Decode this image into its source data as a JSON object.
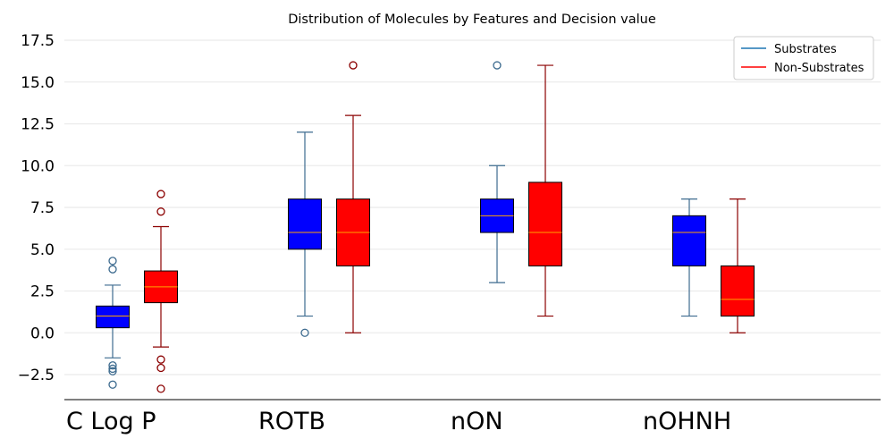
{
  "chart_data": {
    "type": "boxplot",
    "title": "Distribution of Molecules by Features and Decision value",
    "xlabel": "",
    "ylabel": "",
    "ylim": [
      -4.0,
      18.0
    ],
    "yticks": [
      -2.5,
      0.0,
      2.5,
      5.0,
      7.5,
      10.0,
      12.5,
      15.0,
      17.5
    ],
    "ytick_labels": [
      "−2.5",
      "0.0",
      "2.5",
      "5.0",
      "7.5",
      "10.0",
      "12.5",
      "15.0",
      "17.5"
    ],
    "grid": "horizontal",
    "legend_position": "top-right",
    "categories": [
      "C Log P",
      "ROTB",
      "nON",
      "nOHNH"
    ],
    "series": [
      {
        "name": "Substrates",
        "fill": "#0000ff",
        "line": "#3d6b8f",
        "boxes": [
          {
            "whislo": -1.5,
            "q1": 0.3,
            "med": 1.0,
            "q3": 1.6,
            "whishi": 2.85,
            "fliers": [
              4.3,
              3.8,
              -1.95,
              -2.15,
              -2.3,
              -3.1
            ]
          },
          {
            "whislo": 1.0,
            "q1": 5.0,
            "med": 6.0,
            "q3": 8.0,
            "whishi": 12.0,
            "fliers": [
              0.0
            ]
          },
          {
            "whislo": 3.0,
            "q1": 6.0,
            "med": 7.0,
            "q3": 8.0,
            "whishi": 10.0,
            "fliers": [
              16.0
            ]
          },
          {
            "whislo": 1.0,
            "q1": 4.0,
            "med": 6.0,
            "q3": 7.0,
            "whishi": 8.0,
            "fliers": []
          }
        ]
      },
      {
        "name": "Non-Substrates",
        "fill": "#ff0000",
        "line": "#8b0000",
        "boxes": [
          {
            "whislo": -0.85,
            "q1": 1.8,
            "med": 2.75,
            "q3": 3.7,
            "whishi": 6.35,
            "fliers": [
              8.3,
              7.25,
              -1.6,
              -2.1,
              -3.35
            ]
          },
          {
            "whislo": 0.0,
            "q1": 4.0,
            "med": 6.0,
            "q3": 8.0,
            "whishi": 13.0,
            "fliers": [
              16.0
            ]
          },
          {
            "whislo": 1.0,
            "q1": 4.0,
            "med": 6.0,
            "q3": 9.0,
            "whishi": 16.0,
            "fliers": []
          },
          {
            "whislo": 0.0,
            "q1": 1.0,
            "med": 2.0,
            "q3": 4.0,
            "whishi": 8.0,
            "fliers": []
          }
        ]
      }
    ],
    "legend_entries": [
      {
        "label": "Substrates",
        "color": "#1f77b4"
      },
      {
        "label": "Non-Substrates",
        "color": "#ff0000"
      }
    ],
    "median_color": "#ffa500"
  }
}
